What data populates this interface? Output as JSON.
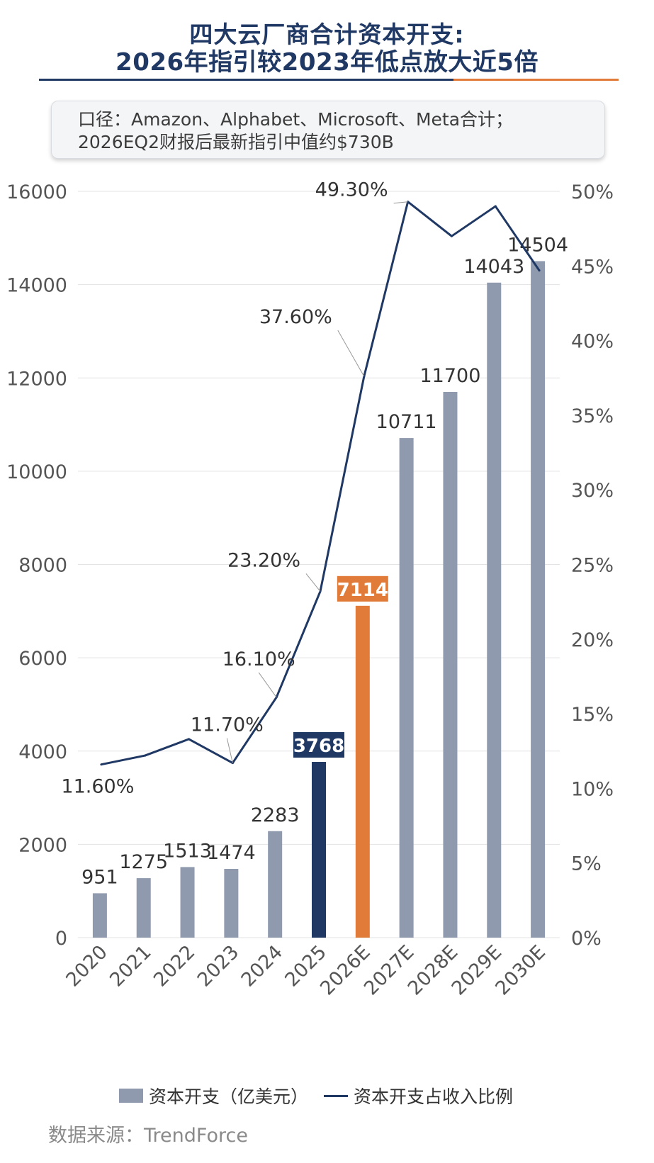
{
  "title": {
    "line1": "四大云厂商合计资本开支:",
    "line2": "2026年指引较2023年低点放大近5倍"
  },
  "note": {
    "line1": "口径：Amazon、Alphabet、Microsoft、Meta合计；",
    "line2": "2026EQ2财报后最新指引中值约$730B"
  },
  "legend": {
    "bar_label": "资本开支（亿美元）",
    "line_label": "资本开支占收入比例"
  },
  "source": "数据来源：TrendForce",
  "colors": {
    "bar_default": "#8f9aae",
    "bar_2025": "#1f3864",
    "bar_2026E": "#e07b39",
    "line": "#1f3864",
    "grid": "#e3e3e3"
  },
  "chart_data": {
    "type": "bar+line",
    "categories": [
      "2020",
      "2021",
      "2022",
      "2023",
      "2024",
      "2025",
      "2026E",
      "2027E",
      "2028E",
      "2029E",
      "2030E"
    ],
    "series": [
      {
        "name": "资本开支（亿美元）",
        "type": "bar",
        "axis": "left",
        "values": [
          951,
          1275,
          1513,
          1474,
          2283,
          3768,
          7114,
          10711,
          11700,
          14043,
          14504
        ],
        "labels": [
          "951",
          "1275",
          "1513",
          "1474",
          "2283",
          "3768",
          "7114",
          "10711",
          "11700",
          "14043",
          "14504"
        ],
        "highlight": {
          "2025": "bar_2025",
          "2026E": "bar_2026E"
        }
      },
      {
        "name": "资本开支占收入比例",
        "type": "line",
        "axis": "right",
        "values": [
          11.6,
          12.2,
          13.3,
          11.7,
          16.1,
          23.2,
          37.6,
          49.3,
          47.0,
          49.0,
          44.7
        ],
        "labels": {
          "2020": "11.60%",
          "2023": "11.70%",
          "2024": "16.10%",
          "2025": "23.20%",
          "2026E": "37.60%",
          "2027E": "49.30%"
        }
      }
    ],
    "y_left": {
      "min": 0,
      "max": 16000,
      "ticks": [
        "0",
        "2000",
        "4000",
        "6000",
        "8000",
        "10000",
        "12000",
        "14000",
        "16000"
      ]
    },
    "y_right": {
      "min": 0,
      "max": 50,
      "ticks": [
        "0%",
        "5%",
        "10%",
        "15%",
        "20%",
        "25%",
        "30%",
        "35%",
        "40%",
        "45%",
        "50%"
      ]
    },
    "grid": true,
    "legend_position": "bottom"
  }
}
